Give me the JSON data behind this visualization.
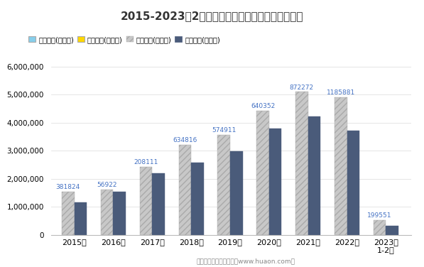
{
  "title": "2015-2023年2月四川省外商投资企业进出口差额图",
  "categories": [
    "2015年",
    "2016年",
    "2017年",
    "2018年",
    "2019年",
    "2020年",
    "2021年",
    "2022年",
    "2023年\n1-2月"
  ],
  "exports": [
    1535000,
    1609000,
    2418000,
    3218000,
    3569000,
    4437000,
    5101000,
    4910000,
    535000
  ],
  "imports": [
    1153176,
    1552078,
    2209889,
    2583184,
    2994089,
    3796648,
    4228728,
    3724119,
    335449
  ],
  "surplus_labels": [
    "381824",
    "56922",
    "208111",
    "634816",
    "574911",
    "640352",
    "872272",
    "1185881",
    "199551"
  ],
  "bar_width": 0.32,
  "export_color": "#c8c8c8",
  "import_color": "#4a5b7a",
  "surplus_color": "#87CEEB",
  "deficit_color": "#FFD700",
  "label_color": "#4472c4",
  "ylim": [
    0,
    6000000
  ],
  "yticks": [
    0,
    1000000,
    2000000,
    3000000,
    4000000,
    5000000,
    6000000
  ],
  "legend_items": [
    "贸易顺差(万美元)",
    "贸易逆差(万美元)",
    "出口总额(万美元)",
    "进口总额(万美元)"
  ],
  "footer": "制图：华经产业研究院（www.huaon.com）",
  "background_color": "#ffffff",
  "fig_width": 5.97,
  "fig_height": 3.76
}
